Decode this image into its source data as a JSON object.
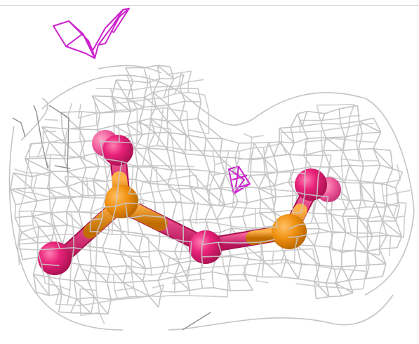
{
  "scene": {
    "colors": {
      "background": "#ffffff",
      "mesh": "#c4c4c4",
      "mesh_dark": "#9a9a9a",
      "magenta_mesh": "#cc22cc",
      "oxygen": "#e8227a",
      "oxygen_light": "#f05a9a",
      "phosphorus": "#f0900f",
      "phosphorus_dark": "#d77800"
    },
    "objects": [
      "electron-density-mesh",
      "difference-density-blob",
      "pyrophosphate-model"
    ]
  }
}
